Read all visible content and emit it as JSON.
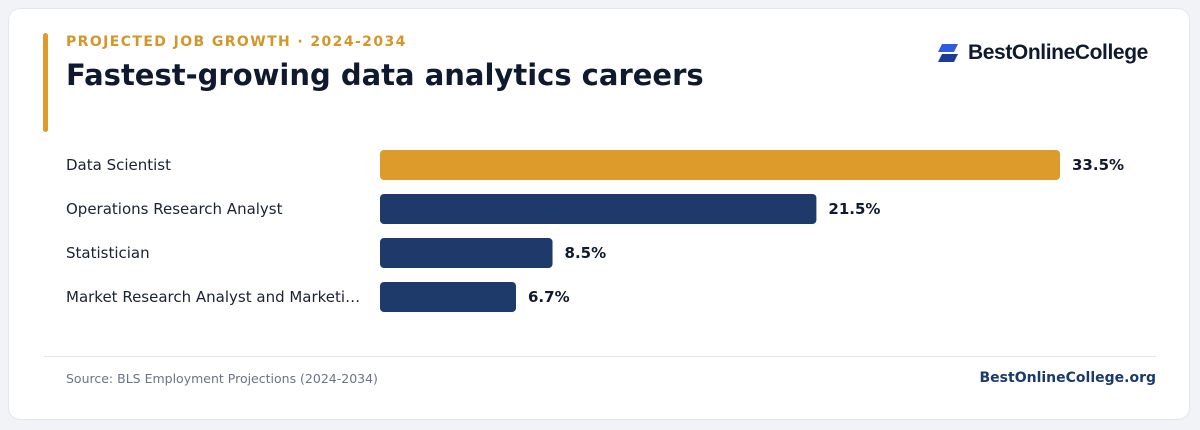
{
  "header": {
    "eyebrow": "PROJECTED JOB GROWTH · 2024-2034",
    "title": "Fastest-growing data analytics careers"
  },
  "brand": {
    "name": "BestOnlineCollege",
    "icon": "brand-logo-icon"
  },
  "colors": {
    "highlight": "#dc9b2b",
    "bar": "#1e3a6b",
    "accent": "#dc9b2b"
  },
  "chart_data": {
    "type": "bar",
    "orientation": "horizontal",
    "categories": [
      "Data Scientist",
      "Operations Research Analyst",
      "Statistician",
      "Market Research Analyst and Marketi…"
    ],
    "values": [
      33.5,
      21.5,
      8.5,
      6.7
    ],
    "value_labels": [
      "33.5%",
      "21.5%",
      "8.5%",
      "6.7%"
    ],
    "highlight_index": 0,
    "xlim": [
      0,
      33.5
    ],
    "grid": false,
    "legend": "none"
  },
  "footer": {
    "source": "Source: BLS Employment Projections (2024-2034)",
    "site": "BestOnlineCollege.org"
  }
}
